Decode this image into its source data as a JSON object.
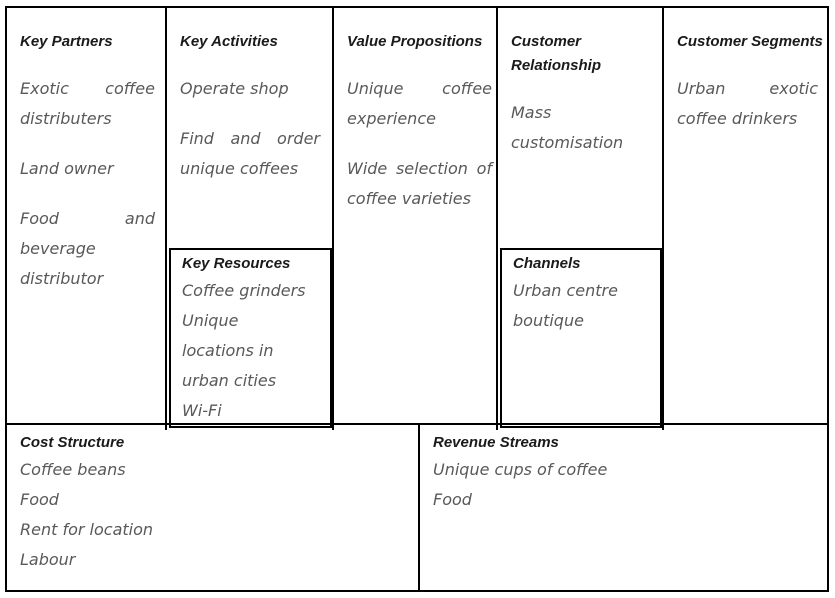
{
  "bmc": {
    "key_partners": {
      "title": "Key Partners",
      "items": [
        "Exotic coffee distributers",
        "Land owner",
        "Food and beverage distributor"
      ]
    },
    "key_activities": {
      "title": "Key Activities",
      "items": [
        "Operate shop",
        "Find and order unique coffees"
      ]
    },
    "key_resources": {
      "title": "Key Resources",
      "items": [
        "Coffee grinders",
        "Unique locations in urban cities",
        "Wi-Fi"
      ]
    },
    "value_propositions": {
      "title": "Value Propositions",
      "items": [
        "Unique coffee experience",
        "Wide selection of coffee varieties"
      ]
    },
    "customer_relationship": {
      "title": "Customer Relationship",
      "items": [
        "Mass customisation"
      ]
    },
    "channels": {
      "title": "Channels",
      "items": [
        "Urban centre boutique"
      ]
    },
    "customer_segments": {
      "title": "Customer Segments",
      "items": [
        "Urban exotic coffee drinkers"
      ]
    },
    "cost_structure": {
      "title": "Cost Structure",
      "items": [
        "Coffee beans",
        "Food",
        "Rent for location",
        "Labour"
      ]
    },
    "revenue_streams": {
      "title": "Revenue Streams",
      "items": [
        "Unique cups of coffee",
        "Food"
      ]
    }
  },
  "colors": {
    "border": "#000000",
    "heading_text": "#1a1a1a",
    "handwriting_text": "#595959",
    "background": "#ffffff"
  }
}
